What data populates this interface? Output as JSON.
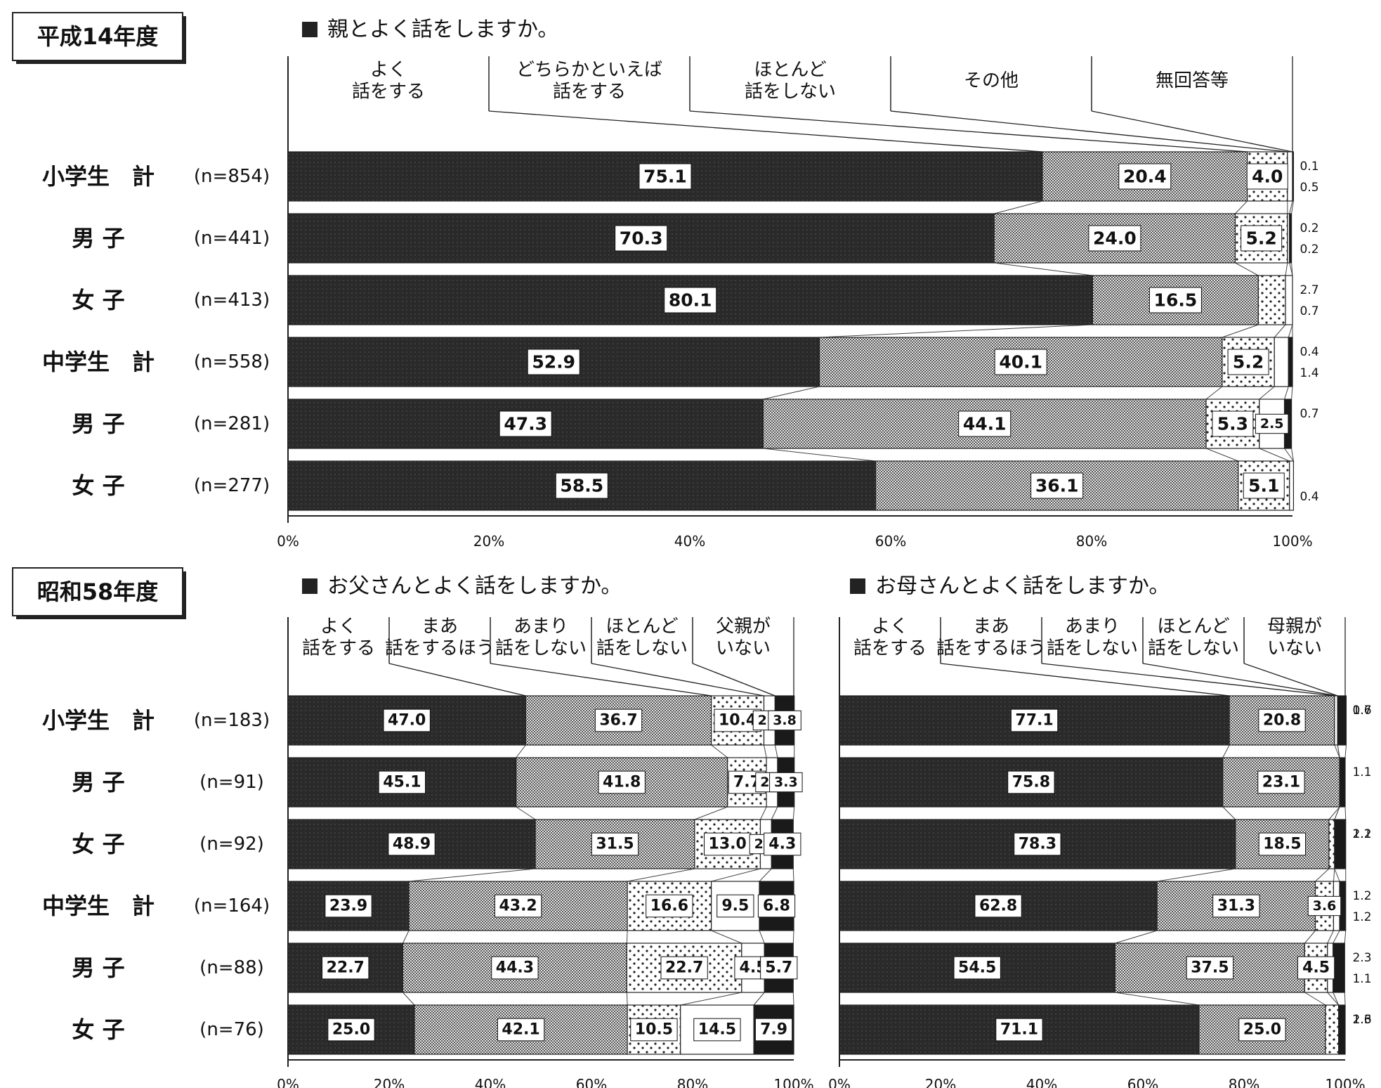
{
  "chart_data": [
    {
      "type": "stacked-bar-horizontal",
      "period_label": "平成14年度",
      "title": "親とよく話をしますか。",
      "legend": [
        "よく\n話をする",
        "どちらかといえば\n話をする",
        "ほとんど\n話をしない",
        "その他",
        "無回答等"
      ],
      "categories": [
        "小学生　計",
        "男 子",
        "女 子",
        "中学生　計",
        "男 子",
        "女 子"
      ],
      "n_labels": [
        "(n=854)",
        "(n=441)",
        "(n=413)",
        "(n=558)",
        "(n=281)",
        "(n=277)"
      ],
      "series": [
        {
          "name": "よく話をする",
          "values": [
            75.1,
            70.3,
            80.1,
            52.9,
            47.3,
            58.5
          ]
        },
        {
          "name": "どちらかといえば話をする",
          "values": [
            20.4,
            24.0,
            16.5,
            40.1,
            44.1,
            36.1
          ]
        },
        {
          "name": "ほとんど話をしない",
          "values": [
            4.0,
            5.2,
            2.7,
            5.2,
            5.3,
            5.1
          ]
        },
        {
          "name": "その他",
          "values": [
            0.5,
            0.2,
            0.7,
            1.4,
            2.5,
            0.4
          ]
        },
        {
          "name": "無回答等",
          "values": [
            0.1,
            0.2,
            0.0,
            0.4,
            0.7,
            0.0
          ]
        }
      ],
      "value_labels": [
        [
          "75.1",
          "20.4",
          "4.0",
          "0.5",
          "0.1"
        ],
        [
          "70.3",
          "24.0",
          "5.2",
          "0.2",
          "0.2"
        ],
        [
          "80.1",
          "16.5",
          "2.7",
          "0.7",
          ""
        ],
        [
          "52.9",
          "40.1",
          "5.2",
          "1.4",
          "0.4"
        ],
        [
          "47.3",
          "44.1",
          "5.3",
          "2.5",
          "0.7"
        ],
        [
          "58.5",
          "36.1",
          "5.1",
          "0.4",
          ""
        ]
      ],
      "xlim": [
        0,
        100
      ],
      "xticks": [
        "0%",
        "20%",
        "40%",
        "60%",
        "80%",
        "100%"
      ]
    },
    {
      "type": "stacked-bar-horizontal",
      "period_label": "昭和58年度",
      "title": "お父さんとよく話をしますか。",
      "legend": [
        "よく\n話をする",
        "まあ\n話をするほう",
        "あまり\n話をしない",
        "ほとんど\n話をしない",
        "父親が\nいない"
      ],
      "categories": [
        "小学生　計",
        "男 子",
        "女 子",
        "中学生　計",
        "男 子",
        "女 子"
      ],
      "n_labels": [
        "(n=183)",
        "(n=91)",
        "(n=92)",
        "(n=164)",
        "(n=88)",
        "(n=76)"
      ],
      "series": [
        {
          "name": "よく話をする",
          "values": [
            47.0,
            45.1,
            48.9,
            23.9,
            22.7,
            25.0
          ]
        },
        {
          "name": "まあ話をするほう",
          "values": [
            36.7,
            41.8,
            31.5,
            43.2,
            44.3,
            42.1
          ]
        },
        {
          "name": "あまり話をしない",
          "values": [
            10.4,
            7.7,
            13.0,
            16.6,
            22.7,
            10.5
          ]
        },
        {
          "name": "ほとんど話をしない",
          "values": [
            2.2,
            2.2,
            2.2,
            9.5,
            4.5,
            14.5
          ]
        },
        {
          "name": "父親がいない",
          "values": [
            3.8,
            3.3,
            4.3,
            6.8,
            5.7,
            7.9
          ]
        }
      ],
      "value_labels": [
        [
          "47.0",
          "36.7",
          "10.4",
          "2.2",
          "3.8"
        ],
        [
          "45.1",
          "41.8",
          "7.7",
          "2.2",
          "3.3"
        ],
        [
          "48.9",
          "31.5",
          "13.0",
          "2.2",
          "4.3"
        ],
        [
          "23.9",
          "43.2",
          "16.6",
          "9.5",
          "6.8"
        ],
        [
          "22.7",
          "44.3",
          "22.7",
          "4.5",
          "5.7"
        ],
        [
          "25.0",
          "42.1",
          "10.5",
          "14.5",
          "7.9"
        ]
      ],
      "xlim": [
        0,
        100
      ],
      "xticks": [
        "0%",
        "20%",
        "40%",
        "60%",
        "80%",
        "100%"
      ]
    },
    {
      "type": "stacked-bar-horizontal",
      "title": "お母さんとよく話をしますか。",
      "legend": [
        "よく\n話をする",
        "まあ\n話をするほう",
        "あまり\n話をしない",
        "ほとんど\n話をしない",
        "母親が\nいない"
      ],
      "series": [
        {
          "name": "よく話をする",
          "values": [
            77.1,
            75.8,
            78.3,
            62.8,
            54.5,
            71.1
          ]
        },
        {
          "name": "まあ話をするほう",
          "values": [
            20.8,
            23.1,
            18.5,
            31.3,
            37.5,
            25.0
          ]
        },
        {
          "name": "あまり話をしない",
          "values": [
            0.6,
            0.0,
            1.1,
            3.6,
            4.5,
            2.6
          ]
        },
        {
          "name": "ほとんど話をしない",
          "values": [
            0.0,
            0.0,
            0.0,
            1.2,
            1.1,
            0.0
          ]
        },
        {
          "name": "母親がいない",
          "values": [
            1.7,
            1.1,
            2.2,
            1.2,
            2.3,
            1.3
          ]
        }
      ],
      "value_labels": [
        [
          "77.1",
          "20.8",
          "0.6",
          "",
          "1.7"
        ],
        [
          "75.8",
          "23.1",
          "",
          "",
          "1.1"
        ],
        [
          "78.3",
          "18.5",
          "1.1",
          "",
          "2.2"
        ],
        [
          "62.8",
          "31.3",
          "3.6",
          "1.2",
          "1.2"
        ],
        [
          "54.5",
          "37.5",
          "4.5",
          "1.1",
          "2.3"
        ],
        [
          "71.1",
          "25.0",
          "2.6",
          "",
          "1.3"
        ]
      ],
      "xlim": [
        0,
        100
      ],
      "xticks": [
        "0%",
        "20%",
        "40%",
        "60%",
        "80%",
        "100%"
      ]
    }
  ]
}
